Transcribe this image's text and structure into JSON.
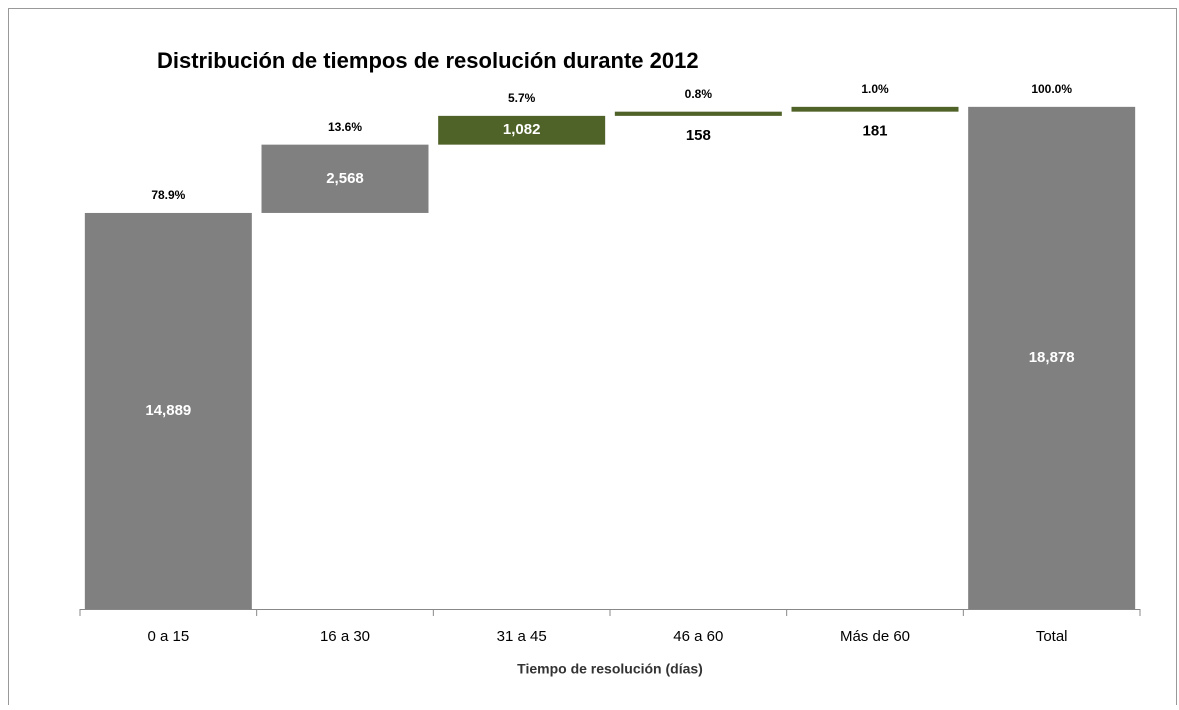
{
  "chart_data": {
    "type": "waterfall",
    "title": "Distribución de tiempos de resolución durante 2012",
    "x_label": "Tiempo de resolución (días)",
    "categories": [
      "0 a 15",
      "16 a 30",
      "31 a 45",
      "46 a 60",
      "Más de 60",
      "Total"
    ],
    "values": [
      14889,
      2568,
      1082,
      158,
      181,
      18878
    ],
    "value_labels": [
      "14,889",
      "2,568",
      "1,082",
      "158",
      "181",
      "18,878"
    ],
    "percent_labels": [
      "78.9%",
      "13.6%",
      "5.7%",
      "0.8%",
      "1.0%",
      "100.0%"
    ],
    "colors": [
      "#808080",
      "#808080",
      "#4f6228",
      "#4f6228",
      "#4f6228",
      "#808080"
    ],
    "is_total": [
      false,
      false,
      false,
      false,
      false,
      true
    ],
    "ylim": [
      0,
      20000
    ]
  }
}
